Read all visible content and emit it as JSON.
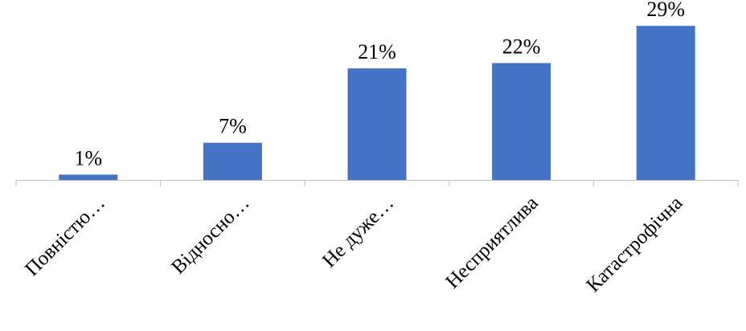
{
  "chart_data": {
    "type": "bar",
    "categories": [
      "Повністю…",
      "Відносно…",
      "Не дуже…",
      "Несприятлива",
      "Катастрофічна"
    ],
    "values": [
      1,
      7,
      21,
      22,
      29
    ],
    "data_labels": [
      "1%",
      "7%",
      "21%",
      "22%",
      "29%"
    ],
    "value_unit": "%",
    "ylim": [
      0,
      31
    ],
    "grid": false,
    "legend": "none",
    "bar_color": "#4472C4",
    "axis_color": "#BFBFBF"
  }
}
